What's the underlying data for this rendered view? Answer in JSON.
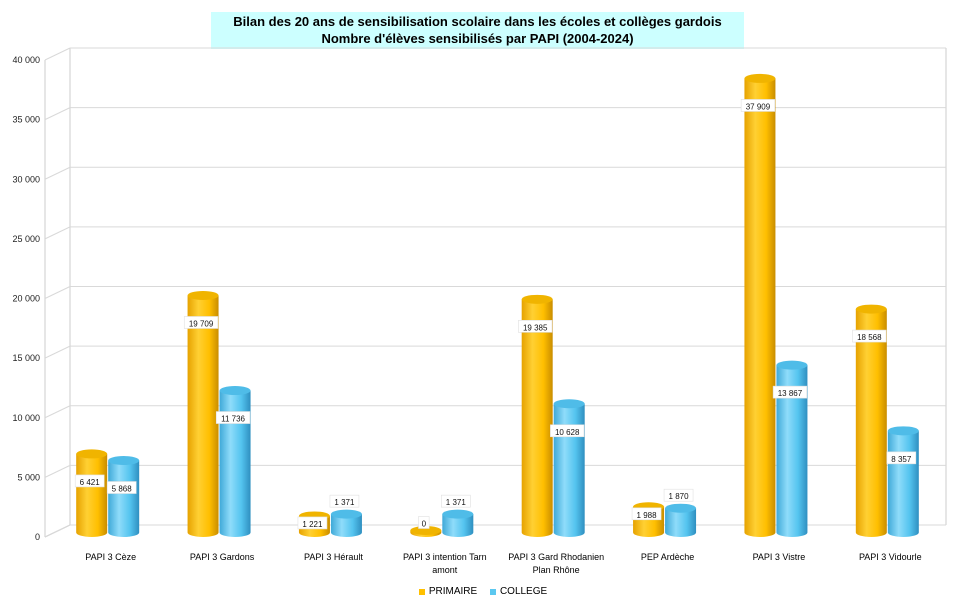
{
  "title": {
    "line1": "Bilan des 20 ans de sensibilisation scolaire dans les écoles et collèges gardois",
    "line2": "Nombre d'élèves sensibilisés par PAPI (2004-2024)"
  },
  "chart_data": {
    "type": "bar",
    "style": "3d-cylinder",
    "title": "Bilan des 20 ans de sensibilisation scolaire dans les écoles et collèges gardois / Nombre d'élèves sensibilisés par PAPI (2004-2024)",
    "categories": [
      [
        "PAPI 3 Cèze"
      ],
      [
        "PAPI 3 Gardons"
      ],
      [
        "PAPI 3 Hérault"
      ],
      [
        "PAPI 3 intention  Tarn",
        "amont"
      ],
      [
        "PAPI 3 Gard Rhodanien",
        "Plan Rhône"
      ],
      [
        "PEP Ardèche"
      ],
      [
        "PAPI 3 Vistre"
      ],
      [
        "PAPI 3 Vidourle"
      ]
    ],
    "series": [
      {
        "name": "PRIMAIRE",
        "color": "#ffc000",
        "values": [
          6421,
          19709,
          1221,
          0,
          19385,
          1988,
          37909,
          18568
        ],
        "labels": [
          "6 421",
          "19 709",
          "1 221",
          "0",
          "19 385",
          "1 988",
          "37 909",
          "18 568"
        ]
      },
      {
        "name": "COLLEGE",
        "color": "#5bc8f0",
        "values": [
          5868,
          11736,
          1371,
          1371,
          10628,
          1870,
          13867,
          8357
        ],
        "labels": [
          "5 868",
          "11 736",
          "1 371",
          "1 371",
          "10 628",
          "1 870",
          "13 867",
          "8 357"
        ]
      }
    ],
    "ylim": [
      0,
      40000
    ],
    "yticks": [
      0,
      5000,
      10000,
      15000,
      20000,
      25000,
      30000,
      35000,
      40000
    ],
    "ytick_labels": [
      "0",
      "5 000",
      "10 000",
      "15 000",
      "20 000",
      "25 000",
      "30 000",
      "35 000",
      "40 000"
    ],
    "xlabel": "",
    "ylabel": "",
    "grid": true,
    "legend_position": "bottom"
  },
  "legend": [
    {
      "name": "PRIMAIRE",
      "color": "#ffc000"
    },
    {
      "name": "COLLEGE",
      "color": "#5bc8f0"
    }
  ]
}
